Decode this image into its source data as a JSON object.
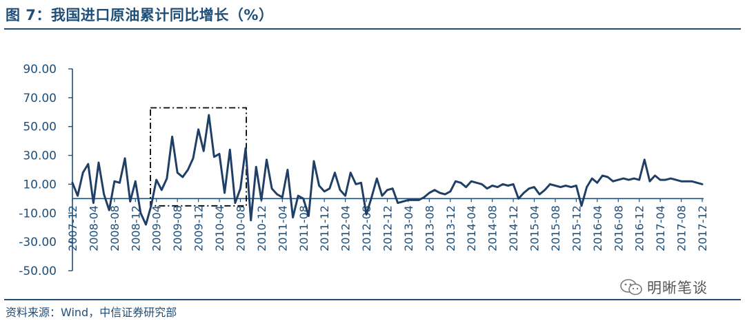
{
  "title": "图 7：我国进口原油累计同比增长（%）",
  "source": "资料来源：Wind，中信证券研究部",
  "watermark": {
    "text": "明晰笔谈",
    "icon": "wechat-icon"
  },
  "colors": {
    "line": "#1f3f66",
    "axis": "#1f4e79",
    "title": "#1f4e79",
    "box": "#000000"
  },
  "chart_data": {
    "type": "line",
    "title": "",
    "xlabel": "",
    "ylabel": "",
    "ylim": [
      -50,
      90
    ],
    "grid": false,
    "yticks": [
      "90.00",
      "70.00",
      "50.00",
      "30.00",
      "10.00",
      "-10.00",
      "-30.00",
      "-50.00"
    ],
    "xtick_labels": [
      "2007-12",
      "2008-04",
      "2008-08",
      "2008-12",
      "2009-04",
      "2009-08",
      "2009-12",
      "2010-04",
      "2010-08",
      "2010-12",
      "2011-04",
      "2011-08",
      "2011-12",
      "2012-04",
      "2012-08",
      "2012-12",
      "2013-04",
      "2013-08",
      "2013-12",
      "2014-04",
      "2014-08",
      "2014-12",
      "2015-04",
      "2015-08",
      "2015-12",
      "2016-04",
      "2016-08",
      "2016-12",
      "2017-04",
      "2017-08",
      "2017-12"
    ],
    "highlight_box": {
      "x_start": "2009-03",
      "x_end": "2010-09",
      "y_top": 63,
      "y_bottom": -5
    },
    "series": [
      {
        "x": [
          "2007-12",
          "2008-01",
          "2008-02",
          "2008-03",
          "2008-04",
          "2008-05",
          "2008-06",
          "2008-07",
          "2008-08",
          "2008-09",
          "2008-10",
          "2008-11",
          "2008-12",
          "2009-01",
          "2009-02",
          "2009-03",
          "2009-04",
          "2009-05",
          "2009-06",
          "2009-07",
          "2009-08",
          "2009-09",
          "2009-10",
          "2009-11",
          "2009-12",
          "2010-01",
          "2010-02",
          "2010-03",
          "2010-04",
          "2010-05",
          "2010-06",
          "2010-07",
          "2010-08",
          "2010-09",
          "2010-10",
          "2010-11",
          "2010-12",
          "2011-01",
          "2011-02",
          "2011-03",
          "2011-04",
          "2011-05",
          "2011-06",
          "2011-07",
          "2011-08",
          "2011-09",
          "2011-10",
          "2011-11",
          "2011-12",
          "2012-01",
          "2012-02",
          "2012-03",
          "2012-04",
          "2012-05",
          "2012-06",
          "2012-07",
          "2012-08",
          "2012-09",
          "2012-10",
          "2012-11",
          "2012-12",
          "2013-01",
          "2013-02",
          "2013-03",
          "2013-04",
          "2013-05",
          "2013-06",
          "2013-07",
          "2013-08",
          "2013-09",
          "2013-10",
          "2013-11",
          "2013-12",
          "2014-01",
          "2014-02",
          "2014-03",
          "2014-04",
          "2014-05",
          "2014-06",
          "2014-07",
          "2014-08",
          "2014-09",
          "2014-10",
          "2014-11",
          "2014-12",
          "2015-01",
          "2015-02",
          "2015-03",
          "2015-04",
          "2015-05",
          "2015-06",
          "2015-07",
          "2015-08",
          "2015-09",
          "2015-10",
          "2015-11",
          "2015-12",
          "2016-01",
          "2016-02",
          "2016-03",
          "2016-04",
          "2016-05",
          "2016-06",
          "2016-07",
          "2016-08",
          "2016-09",
          "2016-10",
          "2016-11",
          "2016-12",
          "2017-01",
          "2017-02",
          "2017-03",
          "2017-04",
          "2017-05",
          "2017-06",
          "2017-07",
          "2017-08",
          "2017-09",
          "2017-10",
          "2017-11",
          "2017-12"
        ],
        "values": [
          11,
          2,
          18,
          24,
          -3,
          25,
          3,
          -8,
          12,
          11,
          28,
          -2,
          12,
          -10,
          -18,
          -5,
          13,
          6,
          14,
          43,
          18,
          15,
          20,
          28,
          48,
          33,
          58,
          29,
          31,
          4,
          34,
          -3,
          7,
          35,
          -15,
          22,
          -1,
          27,
          7,
          3,
          1,
          20,
          -13,
          2,
          0,
          -12,
          26,
          9,
          5,
          7,
          18,
          6,
          2,
          18,
          10,
          11,
          -11,
          1,
          14,
          2,
          6,
          7,
          -3,
          -2,
          -1,
          -1,
          -1,
          1,
          4,
          6,
          4,
          3,
          5,
          12,
          11,
          8,
          12,
          11,
          10,
          7,
          9,
          8,
          10,
          9,
          10,
          0,
          4,
          7,
          8,
          3,
          6,
          10,
          9,
          8,
          9,
          8,
          9,
          -5,
          8,
          14,
          11,
          16,
          15,
          12,
          13,
          14,
          13,
          14,
          13,
          27,
          12,
          16,
          13,
          13,
          14,
          13,
          12,
          12,
          12,
          11,
          10
        ]
      }
    ]
  }
}
